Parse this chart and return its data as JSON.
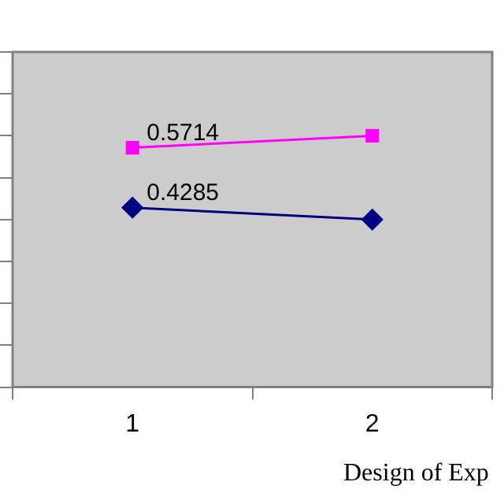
{
  "chart_data": {
    "type": "line",
    "xlabel": "Design of Exp",
    "categories": [
      "1",
      "2"
    ],
    "series": [
      {
        "color": "#ff00ff",
        "marker": "square",
        "values": [
          0.5714,
          0.6
        ],
        "value_labels": [
          "0.5714",
          null
        ]
      },
      {
        "color": "#000080",
        "marker": "diamond",
        "values": [
          0.4285,
          0.4
        ],
        "value_labels": [
          "0.4285",
          null
        ]
      }
    ],
    "ylim": [
      0,
      0.8
    ],
    "yticks": [
      {
        "value": 0,
        "label": null
      },
      {
        "value": 0.1,
        "label": null
      },
      {
        "value": 0.2,
        "label": null
      },
      {
        "value": 0.3,
        "label": null
      },
      {
        "value": 0.4,
        "label": null
      },
      {
        "value": 0.5,
        "label": null
      },
      {
        "value": 0.6,
        "label": null
      },
      {
        "value": 0.7,
        "label": null
      },
      {
        "value": 0.8,
        "label": null
      }
    ],
    "tick_labels": "x",
    "grid": false,
    "legend": false
  }
}
